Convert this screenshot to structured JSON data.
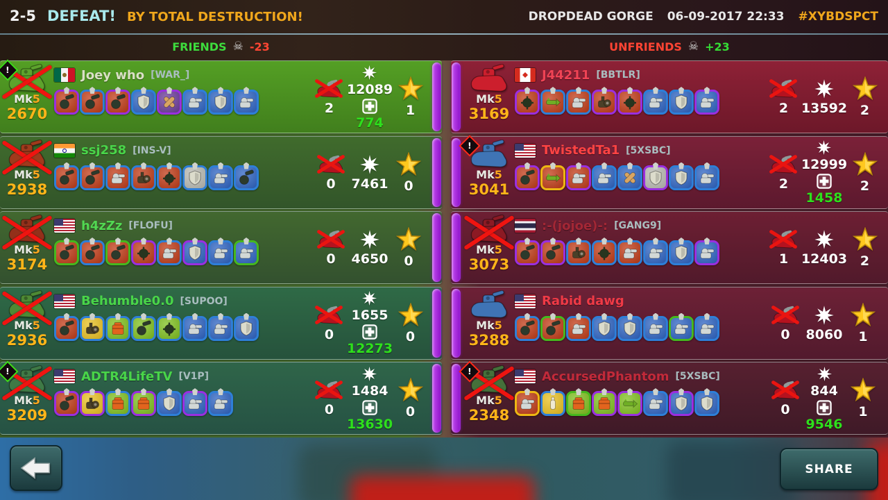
{
  "header": {
    "score": "2-5",
    "result": "DEFEAT!",
    "reason": "BY TOTAL DESTRUCTION!",
    "map": "DROPDEAD GORGE",
    "datetime": "06-09-2017 22:33",
    "tag": "#XYBDSPCT",
    "score_color": "#f2f2f2",
    "result_color": "#a9e9ec",
    "reason_color": "#f0a71c",
    "tag_color": "#f0a71c"
  },
  "skull_icon": "☠",
  "mk_prefix": "Mk",
  "palette": {
    "borders": {
      "blue": "#2e7fd8",
      "purple": "#9a2fe0",
      "green": "#46b81e",
      "yellow": "#edb713"
    },
    "backgrounds": {
      "red": "#c03a16",
      "blue": "#2d63c2",
      "green": "#7fc01e",
      "yellow": "#e9c020",
      "silver": "#b9bab2",
      "purple": "#6a3a9a"
    }
  },
  "teams": [
    {
      "side": "friends",
      "label": "FRIENDS",
      "delta": "-23",
      "label_color": "#3ddc3d",
      "delta_color": "#ff4633",
      "accent": "#3fe01a",
      "players": [
        {
          "name": "Joey who",
          "clan": "[WAR_]",
          "name_color": "#d9dfc5",
          "flag": "mx",
          "mk_level": "5",
          "infamy": "2670",
          "kills": "2",
          "damage": "12089",
          "heal": "774",
          "stars": "1",
          "dead": true,
          "badge": true,
          "ship_color": "#5da32c",
          "items": [
            {
              "b": "purple",
              "g": "red",
              "t": "cannon"
            },
            {
              "b": "blue",
              "g": "red",
              "t": "cannon"
            },
            {
              "b": "purple",
              "g": "red",
              "t": "cannon"
            },
            {
              "b": "blue",
              "g": "blue",
              "t": "shield"
            },
            {
              "b": "purple",
              "g": "purple",
              "t": "bandage"
            },
            {
              "b": "blue",
              "g": "blue",
              "t": "turret"
            },
            {
              "b": "blue",
              "g": "blue",
              "t": "shield"
            },
            {
              "b": "blue",
              "g": "blue",
              "t": "turret"
            }
          ]
        },
        {
          "name": "ssj258",
          "clan": "[INS-V]",
          "name_color": "#49d549",
          "flag": "in",
          "mk_level": "5",
          "infamy": "2938",
          "kills": "0",
          "damage": "7461",
          "heal": "",
          "stars": "0",
          "dead": true,
          "badge": false,
          "ship_color": "#a03a1c",
          "items": [
            {
              "b": "blue",
              "g": "red",
              "t": "cannon"
            },
            {
              "b": "blue",
              "g": "red",
              "t": "cannon"
            },
            {
              "b": "blue",
              "g": "red",
              "t": "turret"
            },
            {
              "b": "blue",
              "g": "red",
              "t": "engine"
            },
            {
              "b": "blue",
              "g": "red",
              "t": "mine"
            },
            {
              "b": "blue",
              "g": "silver",
              "t": "shield"
            },
            {
              "b": "blue",
              "g": "blue",
              "t": "turret"
            },
            {
              "b": "blue",
              "g": "blue",
              "t": "cannon"
            }
          ]
        },
        {
          "name": "h4zZz",
          "clan": "[FLOFU]",
          "name_color": "#52d852",
          "flag": "us",
          "mk_level": "5",
          "infamy": "3174",
          "kills": "0",
          "damage": "4650",
          "heal": "",
          "stars": "0",
          "dead": true,
          "badge": false,
          "ship_color": "#93301a",
          "items": [
            {
              "b": "green",
              "g": "red",
              "t": "cannon"
            },
            {
              "b": "blue",
              "g": "red",
              "t": "cannon"
            },
            {
              "b": "green",
              "g": "red",
              "t": "cannon"
            },
            {
              "b": "purple",
              "g": "red",
              "t": "mine"
            },
            {
              "b": "blue",
              "g": "red",
              "t": "turret"
            },
            {
              "b": "purple",
              "g": "blue",
              "t": "shield"
            },
            {
              "b": "blue",
              "g": "blue",
              "t": "turret"
            },
            {
              "b": "green",
              "g": "blue",
              "t": "turret"
            }
          ]
        },
        {
          "name": "Behumble0.0",
          "clan": "[SUPOO]",
          "name_color": "#49d549",
          "flag": "us",
          "mk_level": "5",
          "infamy": "2936",
          "kills": "0",
          "damage": "1655",
          "heal": "12273",
          "stars": "0",
          "dead": true,
          "badge": false,
          "ship_color": "#4e8a34",
          "items": [
            {
              "b": "blue",
              "g": "red",
              "t": "cannon"
            },
            {
              "b": "blue",
              "g": "yellow",
              "t": "engine"
            },
            {
              "b": "blue",
              "g": "green",
              "t": "box"
            },
            {
              "b": "blue",
              "g": "green",
              "t": "cannon"
            },
            {
              "b": "blue",
              "g": "green",
              "t": "mine"
            },
            {
              "b": "blue",
              "g": "blue",
              "t": "turret"
            },
            {
              "b": "blue",
              "g": "blue",
              "t": "turret"
            },
            {
              "b": "blue",
              "g": "blue",
              "t": "shield"
            }
          ]
        },
        {
          "name": "ADTR4LifeTV",
          "clan": "[V1P]",
          "name_color": "#49d549",
          "flag": "us",
          "mk_level": "5",
          "infamy": "3209",
          "kills": "0",
          "damage": "1484",
          "heal": "13630",
          "stars": "0",
          "dead": true,
          "badge": true,
          "ship_color": "#3f7a46",
          "items": [
            {
              "b": "purple",
              "g": "red",
              "t": "cannon"
            },
            {
              "b": "purple",
              "g": "yellow",
              "t": "engine"
            },
            {
              "b": "blue",
              "g": "green",
              "t": "box"
            },
            {
              "b": "purple",
              "g": "green",
              "t": "box"
            },
            {
              "b": "blue",
              "g": "blue",
              "t": "shield"
            },
            {
              "b": "purple",
              "g": "blue",
              "t": "turret"
            },
            {
              "b": "blue",
              "g": "blue",
              "t": "turret"
            }
          ]
        }
      ]
    },
    {
      "side": "unfriends",
      "label": "UNFRIENDS",
      "delta": "+23",
      "label_color": "#ff4433",
      "delta_color": "#35dd35",
      "accent": "#ff2a1a",
      "players": [
        {
          "name": "J44211",
          "clan": "[BBTLR]",
          "name_color": "#f04355",
          "flag": "ca",
          "mk_level": "5",
          "infamy": "3169",
          "kills": "2",
          "damage": "13592",
          "heal": "",
          "stars": "2",
          "dead": false,
          "badge": false,
          "ship_color": "#cc1f2d",
          "items": [
            {
              "b": "purple",
              "g": "red",
              "t": "mine"
            },
            {
              "b": "blue",
              "g": "red",
              "t": "rocket"
            },
            {
              "b": "blue",
              "g": "red",
              "t": "turret"
            },
            {
              "b": "purple",
              "g": "red",
              "t": "engine"
            },
            {
              "b": "purple",
              "g": "red",
              "t": "mine"
            },
            {
              "b": "blue",
              "g": "blue",
              "t": "turret"
            },
            {
              "b": "blue",
              "g": "blue",
              "t": "shield"
            },
            {
              "b": "purple",
              "g": "blue",
              "t": "turret"
            }
          ]
        },
        {
          "name": "TwistedTa1",
          "clan": "[5XSBC]",
          "name_color": "#ff4343",
          "flag": "us",
          "mk_level": "5",
          "infamy": "3041",
          "kills": "2",
          "damage": "12999",
          "heal": "1458",
          "stars": "2",
          "dead": false,
          "badge": true,
          "ship_color": "#3f74b5",
          "items": [
            {
              "b": "purple",
              "g": "red",
              "t": "cannon"
            },
            {
              "b": "yellow",
              "g": "red",
              "t": "rocket"
            },
            {
              "b": "purple",
              "g": "red",
              "t": "turret"
            },
            {
              "b": "blue",
              "g": "blue",
              "t": "turret"
            },
            {
              "b": "blue",
              "g": "blue",
              "t": "bandage"
            },
            {
              "b": "purple",
              "g": "silver",
              "t": "shield"
            },
            {
              "b": "blue",
              "g": "blue",
              "t": "shield"
            },
            {
              "b": "blue",
              "g": "blue",
              "t": "turret"
            }
          ]
        },
        {
          "name": ":-(jojoe)-:",
          "clan": "[GANG9]",
          "name_color": "#a32735",
          "flag": "th",
          "mk_level": "5",
          "infamy": "3073",
          "kills": "1",
          "damage": "12403",
          "heal": "",
          "stars": "2",
          "dead": true,
          "badge": false,
          "ship_color": "#8c1a24",
          "items": [
            {
              "b": "purple",
              "g": "red",
              "t": "cannon"
            },
            {
              "b": "purple",
              "g": "red",
              "t": "cannon"
            },
            {
              "b": "blue",
              "g": "red",
              "t": "engine"
            },
            {
              "b": "blue",
              "g": "red",
              "t": "mine"
            },
            {
              "b": "blue",
              "g": "red",
              "t": "turret"
            },
            {
              "b": "blue",
              "g": "blue",
              "t": "turret"
            },
            {
              "b": "blue",
              "g": "blue",
              "t": "shield"
            },
            {
              "b": "purple",
              "g": "blue",
              "t": "turret"
            }
          ]
        },
        {
          "name": "Rabid dawg",
          "clan": "",
          "name_color": "#ef3a46",
          "flag": "us",
          "mk_level": "5",
          "infamy": "3288",
          "kills": "0",
          "damage": "8060",
          "heal": "",
          "stars": "1",
          "dead": false,
          "badge": false,
          "ship_color": "#3f74b5",
          "items": [
            {
              "b": "blue",
              "g": "red",
              "t": "cannon"
            },
            {
              "b": "green",
              "g": "red",
              "t": "cannon"
            },
            {
              "b": "blue",
              "g": "red",
              "t": "turret"
            },
            {
              "b": "blue",
              "g": "blue",
              "t": "shield"
            },
            {
              "b": "blue",
              "g": "blue",
              "t": "shield"
            },
            {
              "b": "blue",
              "g": "blue",
              "t": "turret"
            },
            {
              "b": "green",
              "g": "blue",
              "t": "turret"
            },
            {
              "b": "blue",
              "g": "blue",
              "t": "turret"
            }
          ]
        },
        {
          "name": "AccursedPhantom",
          "clan": "[5XSBC]",
          "name_color": "#c22a3a",
          "flag": "us",
          "mk_level": "5",
          "infamy": "2348",
          "kills": "0",
          "damage": "844",
          "heal": "9546",
          "stars": "1",
          "dead": true,
          "badge": true,
          "ship_color": "#45703a",
          "items": [
            {
              "b": "yellow",
              "g": "red",
              "t": "turret"
            },
            {
              "b": "blue",
              "g": "yellow",
              "t": "lamp"
            },
            {
              "b": "green",
              "g": "green",
              "t": "box"
            },
            {
              "b": "purple",
              "g": "green",
              "t": "box"
            },
            {
              "b": "purple",
              "g": "green",
              "t": "rocket"
            },
            {
              "b": "blue",
              "g": "blue",
              "t": "turret"
            },
            {
              "b": "purple",
              "g": "blue",
              "t": "shield"
            },
            {
              "b": "blue",
              "g": "blue",
              "t": "shield"
            }
          ]
        }
      ]
    }
  ],
  "footer": {
    "share_label": "SHARE"
  }
}
